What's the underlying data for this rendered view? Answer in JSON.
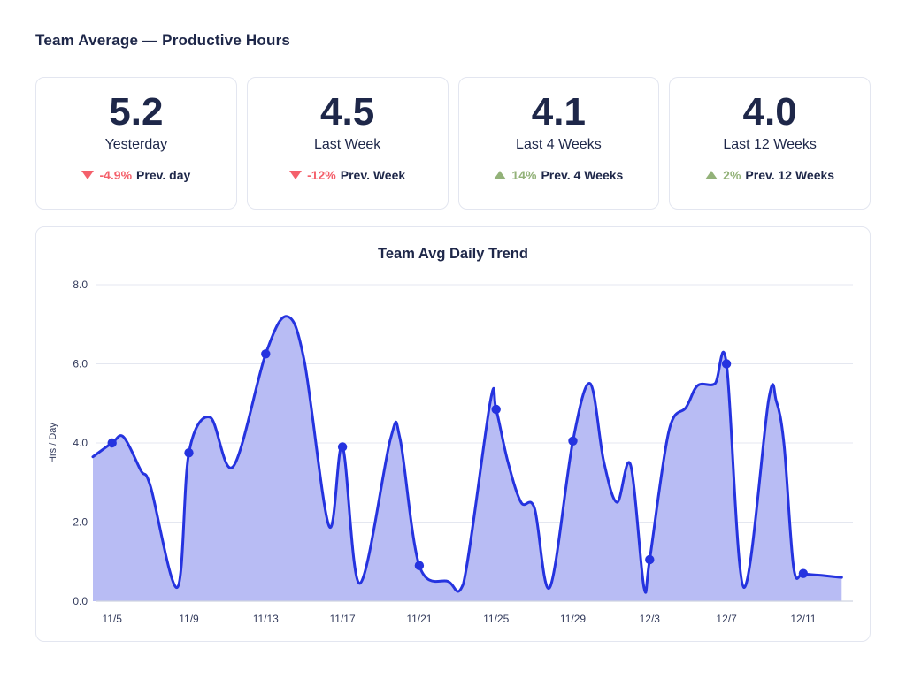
{
  "page": {
    "title": "Team Average — Productive Hours"
  },
  "colors": {
    "navy": "#1e2749",
    "negative": "#f4606b",
    "positive": "#93b279",
    "line": "#2533df",
    "fill": "#b8bcf4",
    "grid": "#e4e7f0",
    "baseline": "#cfd3e0",
    "card_border": "#e3e6f0"
  },
  "cards": [
    {
      "value": "5.2",
      "label": "Yesterday",
      "delta": "-4.9%",
      "suffix": "Prev. day",
      "direction": "down"
    },
    {
      "value": "4.5",
      "label": "Last Week",
      "delta": "-12%",
      "suffix": "Prev. Week",
      "direction": "down"
    },
    {
      "value": "4.1",
      "label": "Last 4 Weeks",
      "delta": "14%",
      "suffix": "Prev. 4 Weeks",
      "direction": "up"
    },
    {
      "value": "4.0",
      "label": "Last 12 Weeks",
      "delta": "2%",
      "suffix": "Prev. 12 Weeks",
      "direction": "up"
    }
  ],
  "chart_data": {
    "type": "area",
    "title": "Team Avg Daily Trend",
    "xlabel": "",
    "ylabel": "Hrs / Day",
    "ylim": [
      0,
      8
    ],
    "yticks": [
      "0.0",
      "2.0",
      "4.0",
      "6.0",
      "8.0"
    ],
    "grid": true,
    "x_range": [
      "11/4",
      "12/13"
    ],
    "xticks": [
      {
        "label": "11/5",
        "day": 1
      },
      {
        "label": "11/9",
        "day": 5
      },
      {
        "label": "11/13",
        "day": 9
      },
      {
        "label": "11/17",
        "day": 13
      },
      {
        "label": "11/21",
        "day": 17
      },
      {
        "label": "11/25",
        "day": 21
      },
      {
        "label": "11/29",
        "day": 25
      },
      {
        "label": "12/3",
        "day": 29
      },
      {
        "label": "12/7",
        "day": 33
      },
      {
        "label": "12/11",
        "day": 37
      }
    ],
    "markers": [
      {
        "date": "11/5",
        "day": 1,
        "value": 4.0
      },
      {
        "date": "11/9",
        "day": 5,
        "value": 3.75
      },
      {
        "date": "11/13",
        "day": 9,
        "value": 6.25
      },
      {
        "date": "11/17",
        "day": 13,
        "value": 3.9
      },
      {
        "date": "11/21",
        "day": 17,
        "value": 0.9
      },
      {
        "date": "11/25",
        "day": 21,
        "value": 4.85
      },
      {
        "date": "11/29",
        "day": 25,
        "value": 4.05
      },
      {
        "date": "12/3",
        "day": 29,
        "value": 1.05
      },
      {
        "date": "12/7",
        "day": 33,
        "value": 6.0
      },
      {
        "date": "12/11",
        "day": 37,
        "value": 0.7
      }
    ],
    "trace": [
      [
        0,
        3.65
      ],
      [
        1,
        4.0
      ],
      [
        1.6,
        4.15
      ],
      [
        2.5,
        3.3
      ],
      [
        3,
        2.9
      ],
      [
        4.4,
        0.35
      ],
      [
        5,
        3.75
      ],
      [
        6.1,
        4.65
      ],
      [
        7.3,
        3.4
      ],
      [
        9,
        6.25
      ],
      [
        10.1,
        7.2
      ],
      [
        11,
        6.1
      ],
      [
        12.3,
        1.9
      ],
      [
        13,
        3.9
      ],
      [
        13.9,
        0.45
      ],
      [
        15.5,
        4.1
      ],
      [
        16,
        4.1
      ],
      [
        17,
        0.9
      ],
      [
        18.5,
        0.5
      ],
      [
        19.3,
        0.45
      ],
      [
        20.7,
        5.05
      ],
      [
        21,
        4.85
      ],
      [
        21.6,
        3.55
      ],
      [
        22.3,
        2.5
      ],
      [
        23,
        2.35
      ],
      [
        23.8,
        0.35
      ],
      [
        25,
        4.05
      ],
      [
        25.9,
        5.5
      ],
      [
        26.6,
        3.55
      ],
      [
        27.3,
        2.5
      ],
      [
        28,
        3.45
      ],
      [
        28.7,
        0.35
      ],
      [
        29,
        1.05
      ],
      [
        30,
        4.3
      ],
      [
        30.9,
        4.9
      ],
      [
        31.5,
        5.45
      ],
      [
        32.4,
        5.5
      ],
      [
        33,
        6.0
      ],
      [
        33.9,
        0.35
      ],
      [
        35.2,
        5.1
      ],
      [
        35.6,
        5.05
      ],
      [
        36,
        3.95
      ],
      [
        36.5,
        0.85
      ],
      [
        37,
        0.7
      ],
      [
        38,
        0.65
      ],
      [
        39,
        0.6
      ]
    ]
  }
}
